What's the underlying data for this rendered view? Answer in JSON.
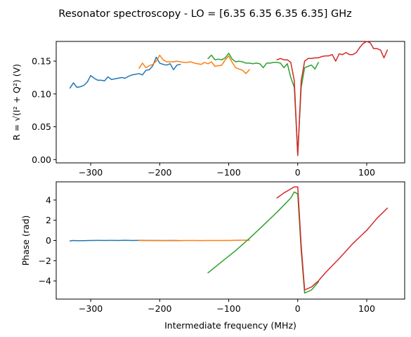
{
  "figure": {
    "title": "Resonator spectroscopy - LO = [6.35 6.35 6.35 6.35] GHz"
  },
  "colors": {
    "series1": "#1f77b4",
    "series2": "#ff7f0e",
    "series3": "#2ca02c",
    "series4": "#d62728"
  },
  "chart_data": [
    {
      "type": "line",
      "ylabel": "R = √(I² + Q²) (V)",
      "xlim": [
        -350,
        155
      ],
      "ylim": [
        -0.005,
        0.18
      ],
      "xticks": [
        -300,
        -200,
        -100,
        0,
        100
      ],
      "xtick_labels": [
        "−300",
        "−200",
        "−100",
        "0",
        "100"
      ],
      "yticks": [
        0.0,
        0.05,
        0.1,
        0.15
      ],
      "ytick_labels": [
        "0.00",
        "0.05",
        "0.10",
        "0.15"
      ],
      "grid": false,
      "series": [
        {
          "color_key": "series1",
          "x": [
            -330,
            -325,
            -320,
            -315,
            -310,
            -305,
            -300,
            -295,
            -290,
            -285,
            -280,
            -275,
            -270,
            -265,
            -260,
            -255,
            -250,
            -245,
            -240,
            -235,
            -230,
            -225,
            -220,
            -215,
            -210,
            -205,
            -200,
            -195,
            -190,
            -185,
            -180,
            -175,
            -170
          ],
          "y": [
            0.109,
            0.117,
            0.11,
            0.111,
            0.113,
            0.118,
            0.128,
            0.124,
            0.121,
            0.121,
            0.12,
            0.126,
            0.122,
            0.123,
            0.124,
            0.125,
            0.124,
            0.127,
            0.129,
            0.13,
            0.131,
            0.129,
            0.136,
            0.137,
            0.143,
            0.156,
            0.147,
            0.145,
            0.144,
            0.146,
            0.137,
            0.144,
            0.145
          ]
        },
        {
          "color_key": "series2",
          "x": [
            -230,
            -225,
            -220,
            -215,
            -210,
            -205,
            -200,
            -195,
            -190,
            -185,
            -180,
            -175,
            -170,
            -165,
            -160,
            -155,
            -150,
            -145,
            -140,
            -135,
            -130,
            -125,
            -120,
            -115,
            -110,
            -105,
            -100,
            -95,
            -90,
            -85,
            -80,
            -75,
            -70
          ],
          "y": [
            0.139,
            0.147,
            0.14,
            0.143,
            0.145,
            0.15,
            0.159,
            0.152,
            0.149,
            0.149,
            0.149,
            0.15,
            0.149,
            0.148,
            0.148,
            0.149,
            0.147,
            0.146,
            0.145,
            0.148,
            0.146,
            0.149,
            0.142,
            0.143,
            0.144,
            0.152,
            0.158,
            0.148,
            0.14,
            0.138,
            0.136,
            0.131,
            0.137
          ]
        },
        {
          "color_key": "series3",
          "x": [
            -130,
            -125,
            -120,
            -115,
            -110,
            -105,
            -100,
            -95,
            -90,
            -85,
            -80,
            -75,
            -70,
            -65,
            -60,
            -55,
            -50,
            -45,
            -40,
            -35,
            -30,
            -25,
            -20,
            -15,
            -10,
            -5,
            0,
            5,
            10,
            15,
            20,
            25,
            30
          ],
          "y": [
            0.154,
            0.159,
            0.152,
            0.153,
            0.152,
            0.155,
            0.162,
            0.153,
            0.149,
            0.15,
            0.149,
            0.147,
            0.147,
            0.146,
            0.147,
            0.146,
            0.14,
            0.147,
            0.147,
            0.148,
            0.148,
            0.147,
            0.14,
            0.146,
            0.125,
            0.11,
            0.008,
            0.11,
            0.14,
            0.142,
            0.144,
            0.138,
            0.148
          ]
        },
        {
          "color_key": "series4",
          "x": [
            -30,
            -25,
            -20,
            -15,
            -10,
            -5,
            0,
            5,
            10,
            15,
            20,
            25,
            30,
            35,
            40,
            45,
            50,
            55,
            60,
            65,
            70,
            75,
            80,
            85,
            90,
            95,
            100,
            105,
            110,
            115,
            120,
            125,
            130
          ],
          "y": [
            0.152,
            0.154,
            0.152,
            0.152,
            0.148,
            0.12,
            0.006,
            0.12,
            0.15,
            0.154,
            0.154,
            0.155,
            0.155,
            0.157,
            0.158,
            0.158,
            0.16,
            0.15,
            0.161,
            0.16,
            0.163,
            0.16,
            0.16,
            0.163,
            0.171,
            0.177,
            0.18,
            0.178,
            0.169,
            0.169,
            0.167,
            0.155,
            0.167
          ]
        }
      ]
    },
    {
      "type": "line",
      "xlabel": "Intermediate frequency (MHz)",
      "ylabel": "Phase (rad)",
      "xlim": [
        -350,
        155
      ],
      "ylim": [
        -5.8,
        5.8
      ],
      "xticks": [
        -300,
        -200,
        -100,
        0,
        100
      ],
      "xtick_labels": [
        "−300",
        "−200",
        "−100",
        "0",
        "100"
      ],
      "yticks": [
        -4,
        -2,
        0,
        2,
        4
      ],
      "ytick_labels": [
        "−4",
        "−2",
        "0",
        "2",
        "4"
      ],
      "grid": false,
      "series": [
        {
          "color_key": "series1",
          "x": [
            -330,
            -325,
            -320,
            -310,
            -300,
            -290,
            -280,
            -270,
            -260,
            -250,
            -240,
            -230,
            -220,
            -210,
            -200,
            -190,
            -180,
            -170
          ],
          "y": [
            -0.05,
            0.0,
            -0.03,
            -0.02,
            0.0,
            0.01,
            0.0,
            0.01,
            0.0,
            0.02,
            0.0,
            0.01,
            0.0,
            0.0,
            0.0,
            -0.01,
            0.0,
            -0.02
          ]
        },
        {
          "color_key": "series2",
          "x": [
            -230,
            -220,
            -210,
            -200,
            -190,
            -180,
            -170,
            -160,
            -150,
            -140,
            -130,
            -120,
            -110,
            -100,
            -90,
            -80,
            -75,
            -70
          ],
          "y": [
            0.0,
            0.0,
            -0.01,
            -0.02,
            -0.01,
            0.0,
            -0.01,
            0.0,
            0.0,
            -0.01,
            0.0,
            0.0,
            0.0,
            0.0,
            0.02,
            0.03,
            0.03,
            0.03
          ]
        },
        {
          "color_key": "series3",
          "x": [
            -130,
            -110,
            -90,
            -70,
            -50,
            -30,
            -10,
            -5,
            0,
            5,
            10,
            20,
            30
          ],
          "y": [
            -3.2,
            -2.1,
            -1.0,
            0.2,
            1.5,
            2.8,
            4.2,
            4.8,
            4.6,
            -1.0,
            -5.2,
            -4.9,
            -4.1
          ]
        },
        {
          "color_key": "series4",
          "x": [
            -30,
            -20,
            -10,
            -5,
            0,
            5,
            10,
            20,
            30,
            40,
            60,
            80,
            100,
            115,
            130
          ],
          "y": [
            4.2,
            4.7,
            5.1,
            5.3,
            5.3,
            -0.5,
            -4.9,
            -4.6,
            -4.0,
            -3.2,
            -1.8,
            -0.3,
            1.0,
            2.2,
            3.2
          ]
        }
      ]
    }
  ]
}
